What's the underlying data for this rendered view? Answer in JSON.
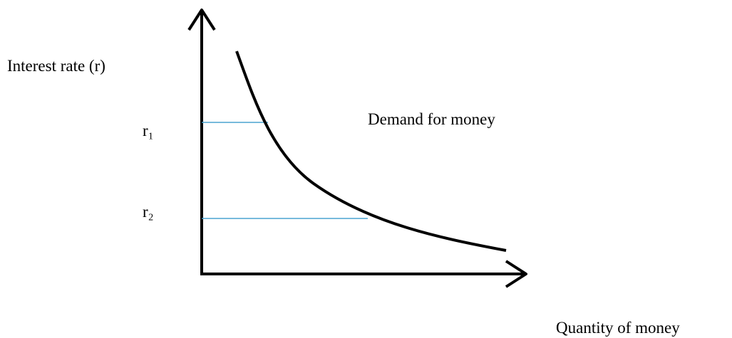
{
  "y_axis_label": "Interest rate (r)",
  "x_axis_label": "Quantity of money",
  "curve_label": "Demand for money",
  "levels": [
    "r₁",
    "r₂"
  ]
}
